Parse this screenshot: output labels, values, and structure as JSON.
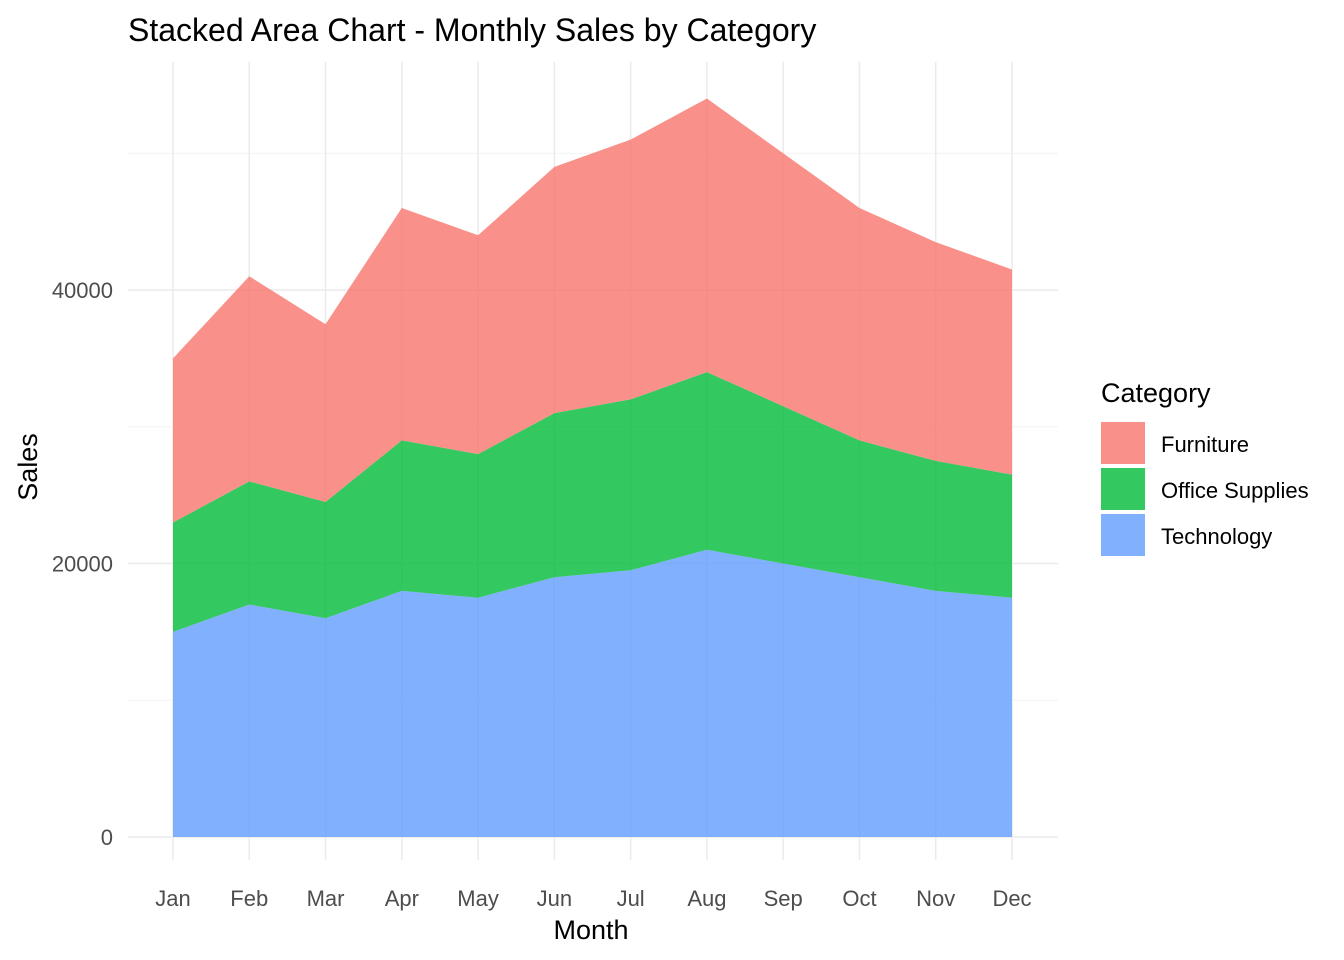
{
  "chart_data": {
    "type": "area",
    "stacked": true,
    "title": "Stacked Area Chart - Monthly Sales by Category",
    "xlabel": "Month",
    "ylabel": "Sales",
    "categories": [
      "Jan",
      "Feb",
      "Mar",
      "Apr",
      "May",
      "Jun",
      "Jul",
      "Aug",
      "Sep",
      "Oct",
      "Nov",
      "Dec"
    ],
    "ylim": [
      0,
      54000
    ],
    "yticks": [
      0,
      20000,
      40000
    ],
    "grid": true,
    "legend": {
      "title": "Category",
      "position": "right"
    },
    "series": [
      {
        "name": "Technology",
        "color": "#619CFF",
        "values": [
          15000,
          17000,
          16000,
          18000,
          17500,
          19000,
          19500,
          21000,
          20000,
          19000,
          18000,
          17500
        ]
      },
      {
        "name": "Office Supplies",
        "color": "#00BA38",
        "values": [
          8000,
          9000,
          8500,
          11000,
          10500,
          12000,
          12500,
          13000,
          11500,
          10000,
          9500,
          9000
        ]
      },
      {
        "name": "Furniture",
        "color": "#F8766D",
        "values": [
          12000,
          15000,
          13000,
          17000,
          16000,
          18000,
          19000,
          20000,
          18500,
          17000,
          16000,
          15000
        ]
      }
    ],
    "legend_order": [
      "Furniture",
      "Office Supplies",
      "Technology"
    ]
  }
}
